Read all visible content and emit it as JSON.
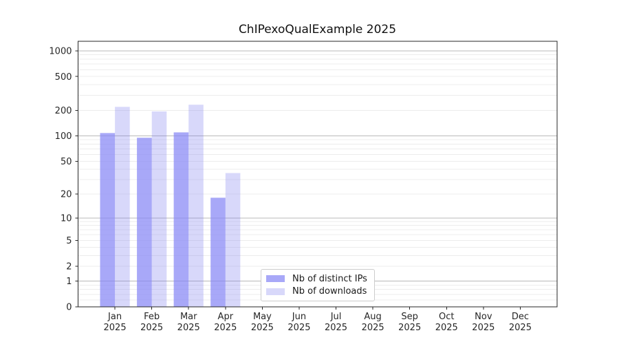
{
  "chart_data": {
    "type": "bar",
    "title": "ChIPexoQualExample 2025",
    "categories": [
      {
        "month": "Jan",
        "year": "2025"
      },
      {
        "month": "Feb",
        "year": "2025"
      },
      {
        "month": "Mar",
        "year": "2025"
      },
      {
        "month": "Apr",
        "year": "2025"
      },
      {
        "month": "May",
        "year": "2025"
      },
      {
        "month": "Jun",
        "year": "2025"
      },
      {
        "month": "Jul",
        "year": "2025"
      },
      {
        "month": "Aug",
        "year": "2025"
      },
      {
        "month": "Sep",
        "year": "2025"
      },
      {
        "month": "Oct",
        "year": "2025"
      },
      {
        "month": "Nov",
        "year": "2025"
      },
      {
        "month": "Dec",
        "year": "2025"
      }
    ],
    "series": [
      {
        "name": "Nb of distinct IPs",
        "color": "#a8a8f8",
        "values": [
          108,
          95,
          110,
          18,
          0,
          0,
          0,
          0,
          0,
          0,
          0,
          0
        ]
      },
      {
        "name": "Nb of downloads",
        "color": "#d8d8fa",
        "values": [
          220,
          194,
          233,
          36,
          0,
          0,
          0,
          0,
          0,
          0,
          0,
          0
        ]
      }
    ],
    "yticks": [
      0,
      1,
      2,
      5,
      10,
      20,
      50,
      100,
      200,
      500,
      1000
    ],
    "yscale": "log10(value+1)",
    "ylim": [
      0,
      1300
    ],
    "xlabel": "",
    "ylabel": "",
    "grid": "horizontal, major decades dark + minor light",
    "legend": {
      "position": "inside-bottom-center"
    },
    "colors": {
      "major_grid": "#b8b8b8",
      "minor_grid": "#ececec",
      "frame": "#262626",
      "text": "#262626",
      "background": "#ffffff"
    }
  }
}
